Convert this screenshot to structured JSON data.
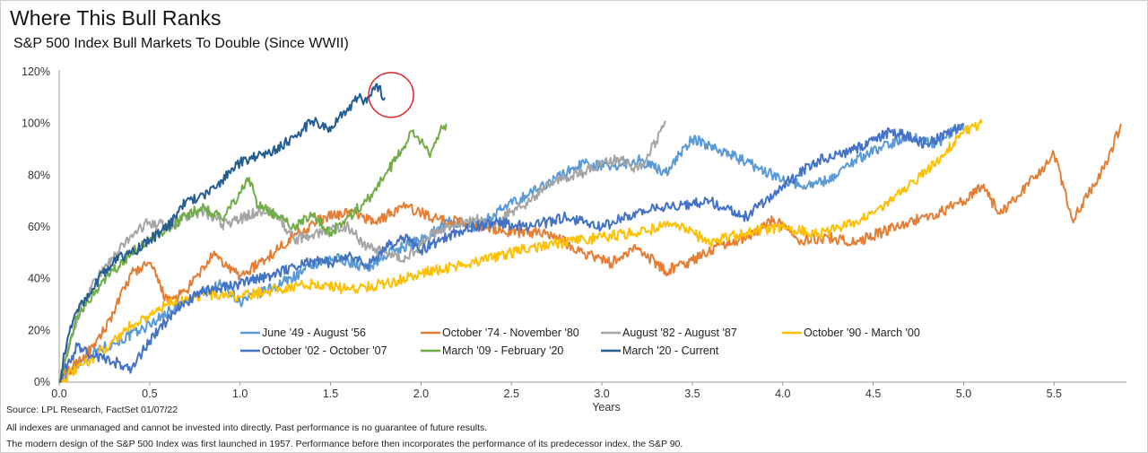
{
  "title": "Where This Bull Ranks",
  "subtitle": "S&P 500 Index Bull Markets To Double (Since WWII)",
  "notes": {
    "source": "Source: LPL Research, FactSet 01/07/22",
    "disclaimer": "All indexes are unmanaged and cannot be invested into directly. Past performance is no guarantee of future results.",
    "methodology": "The modern design of the S&P 500 Index was first launched in 1957. Performance before then incorporates the performance of its predecessor index, the S&P 90."
  },
  "chart_data": {
    "type": "line",
    "xlabel": "Years",
    "ylabel": "",
    "xlim": [
      0,
      5.9
    ],
    "ylim": [
      0,
      120
    ],
    "x_ticks": [
      0.0,
      0.5,
      1.0,
      1.5,
      2.0,
      2.5,
      3.0,
      3.5,
      4.0,
      4.5,
      5.0,
      5.5
    ],
    "x_tick_labels": [
      "0.0",
      "0.5",
      "1.0",
      "1.5",
      "2.0",
      "2.5",
      "3.0",
      "3.5",
      "4.0",
      "4.5",
      "5.0",
      "5.5"
    ],
    "y_ticks": [
      0,
      20,
      40,
      60,
      80,
      100,
      120
    ],
    "y_tick_labels": [
      "0%",
      "20%",
      "40%",
      "60%",
      "80%",
      "100%",
      "120%"
    ],
    "grid": false,
    "legend_position": "bottom-center",
    "annotation": "red circle around latest value of March '20 - Current",
    "annotation_color": "#e0252b",
    "series": [
      {
        "name": "June '49 - August '56",
        "color": "#5b9bd5",
        "x": [
          0,
          0.1,
          0.2,
          0.3,
          0.45,
          0.6,
          0.75,
          0.9,
          1.0,
          1.1,
          1.25,
          1.4,
          1.55,
          1.7,
          1.85,
          2.0,
          2.15,
          2.3,
          2.45,
          2.6,
          2.75,
          2.9,
          3.05,
          3.2,
          3.35,
          3.5,
          3.65,
          3.8,
          3.95,
          4.1,
          4.25,
          4.4,
          4.55,
          4.7,
          4.85,
          5.0
        ],
        "y": [
          0,
          7,
          12,
          15,
          20,
          27,
          33,
          38,
          31,
          34,
          39,
          45,
          48,
          44,
          51,
          55,
          62,
          60,
          67,
          73,
          79,
          85,
          83,
          86,
          81,
          94,
          90,
          85,
          80,
          76,
          78,
          86,
          91,
          95,
          92,
          100
        ]
      },
      {
        "name": "October '74 - November '80",
        "color": "#e57e32",
        "x": [
          0,
          0.1,
          0.2,
          0.3,
          0.4,
          0.5,
          0.6,
          0.7,
          0.85,
          1.0,
          1.15,
          1.3,
          1.45,
          1.6,
          1.75,
          1.9,
          2.1,
          2.3,
          2.5,
          2.7,
          2.9,
          3.05,
          3.2,
          3.35,
          3.5,
          3.65,
          3.8,
          3.95,
          4.1,
          4.25,
          4.4,
          4.55,
          4.7,
          4.85,
          5.0,
          5.1,
          5.2,
          5.3,
          5.4,
          5.5,
          5.6,
          5.7,
          5.8,
          5.87
        ],
        "y": [
          0,
          8,
          14,
          27,
          42,
          46,
          31,
          35,
          49,
          41,
          48,
          57,
          63,
          66,
          62,
          68,
          63,
          61,
          58,
          58,
          50,
          46,
          52,
          43,
          47,
          53,
          56,
          63,
          55,
          56,
          54,
          58,
          62,
          65,
          70,
          76,
          65,
          72,
          80,
          88,
          63,
          74,
          86,
          100
        ]
      },
      {
        "name": "August '82 - August '87",
        "color": "#a5a5a5",
        "x": [
          0,
          0.1,
          0.2,
          0.3,
          0.4,
          0.5,
          0.6,
          0.7,
          0.8,
          0.9,
          1.0,
          1.1,
          1.2,
          1.3,
          1.4,
          1.5,
          1.6,
          1.7,
          1.8,
          1.9,
          2.0,
          2.1,
          2.2,
          2.3,
          2.4,
          2.5,
          2.6,
          2.7,
          2.8,
          2.9,
          3.0,
          3.1,
          3.2,
          3.3,
          3.35
        ],
        "y": [
          0,
          25,
          40,
          48,
          57,
          62,
          60,
          64,
          66,
          61,
          63,
          66,
          65,
          55,
          57,
          59,
          60,
          52,
          50,
          47,
          53,
          59,
          61,
          63,
          60,
          66,
          70,
          76,
          79,
          81,
          85,
          86,
          82,
          93,
          101
        ]
      },
      {
        "name": "October '90 - March '00",
        "color": "#ffc000",
        "x": [
          0,
          0.2,
          0.4,
          0.6,
          0.8,
          1.0,
          1.2,
          1.4,
          1.6,
          1.8,
          2.0,
          2.2,
          2.4,
          2.6,
          2.8,
          3.0,
          3.2,
          3.4,
          3.6,
          3.8,
          4.0,
          4.2,
          4.4,
          4.6,
          4.8,
          5.0,
          5.1
        ],
        "y": [
          0,
          10,
          22,
          30,
          34,
          33,
          36,
          38,
          36,
          38,
          42,
          45,
          48,
          52,
          54,
          56,
          58,
          61,
          54,
          58,
          60,
          57,
          62,
          70,
          82,
          97,
          100
        ]
      },
      {
        "name": "October '02 - October '07",
        "color": "#4472c4",
        "x": [
          0,
          0.1,
          0.2,
          0.3,
          0.4,
          0.5,
          0.6,
          0.7,
          0.8,
          0.9,
          1.0,
          1.1,
          1.2,
          1.3,
          1.4,
          1.5,
          1.6,
          1.7,
          1.8,
          1.9,
          2.0,
          2.2,
          2.4,
          2.6,
          2.8,
          3.0,
          3.2,
          3.4,
          3.6,
          3.8,
          4.0,
          4.2,
          4.4,
          4.6,
          4.8,
          5.0
        ],
        "y": [
          0,
          14,
          10,
          8,
          5,
          16,
          24,
          31,
          35,
          37,
          38,
          40,
          42,
          45,
          47,
          46,
          49,
          45,
          52,
          56,
          51,
          58,
          62,
          60,
          64,
          60,
          66,
          68,
          70,
          64,
          76,
          86,
          90,
          97,
          92,
          100
        ]
      },
      {
        "name": "March '09 - February '20",
        "color": "#70ad47",
        "x": [
          0,
          0.05,
          0.1,
          0.2,
          0.3,
          0.4,
          0.5,
          0.6,
          0.7,
          0.8,
          0.9,
          1.0,
          1.05,
          1.1,
          1.2,
          1.3,
          1.4,
          1.5,
          1.6,
          1.7,
          1.8,
          1.9,
          1.95,
          2.0,
          2.05,
          2.1,
          2.14
        ],
        "y": [
          0,
          12,
          25,
          35,
          43,
          50,
          55,
          59,
          64,
          68,
          63,
          73,
          79,
          68,
          65,
          60,
          65,
          58,
          64,
          70,
          80,
          90,
          97,
          93,
          87,
          96,
          100
        ]
      },
      {
        "name": "March '20 - Current",
        "color": "#255e91",
        "x": [
          0,
          0.05,
          0.1,
          0.2,
          0.3,
          0.4,
          0.5,
          0.6,
          0.7,
          0.8,
          0.9,
          1.0,
          1.1,
          1.2,
          1.3,
          1.4,
          1.5,
          1.55,
          1.6,
          1.65,
          1.7,
          1.75,
          1.8
        ],
        "y": [
          0,
          18,
          28,
          38,
          47,
          50,
          55,
          60,
          70,
          72,
          78,
          85,
          88,
          90,
          95,
          101,
          97,
          103,
          105,
          110,
          108,
          115,
          110
        ]
      }
    ]
  }
}
